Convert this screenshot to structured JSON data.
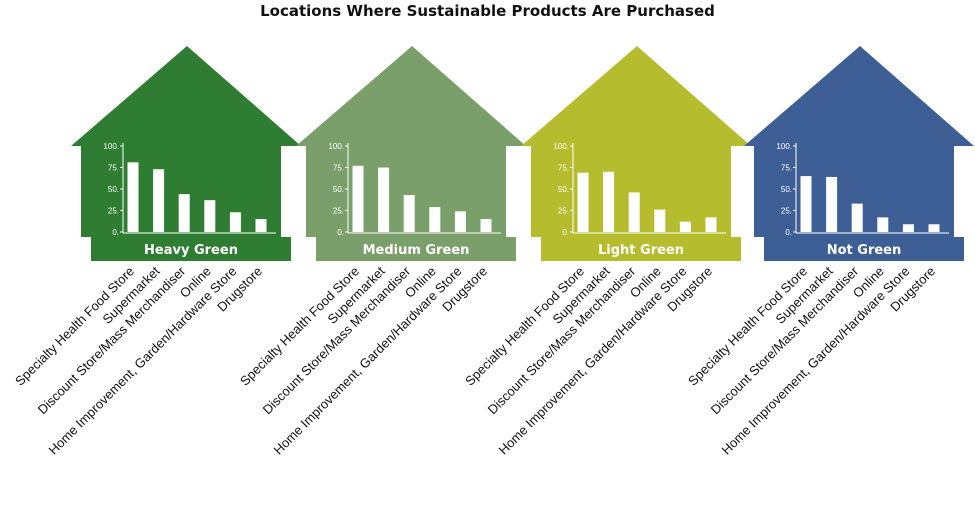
{
  "chart_data": {
    "type": "bar",
    "title": "Locations Where Sustainable Products Are Purchased",
    "categories": [
      "Specialty Health Food Store",
      "Supermarket",
      "Discount Store/Mass Merchandiser",
      "Online",
      "Home Improvement, Garden/Hardware Store",
      "Drugstore"
    ],
    "y_ticks": [
      "0.",
      "25.",
      "50.",
      "75.",
      "100."
    ],
    "ylim": [
      0,
      100
    ],
    "grid": false,
    "panels": [
      {
        "name": "Heavy Green",
        "color": "#2e7d32",
        "values": [
          81,
          73,
          44,
          37,
          23,
          15
        ]
      },
      {
        "name": "Medium Green",
        "color": "#7a9f6a",
        "values": [
          77,
          75,
          43,
          29,
          24,
          15
        ]
      },
      {
        "name": "Light Green",
        "color": "#b5bd2e",
        "values": [
          69,
          70,
          46,
          26,
          12,
          17
        ]
      },
      {
        "name": "Not Green",
        "color": "#3e5f96",
        "values": [
          65,
          64,
          33,
          17,
          9,
          9
        ]
      }
    ]
  }
}
